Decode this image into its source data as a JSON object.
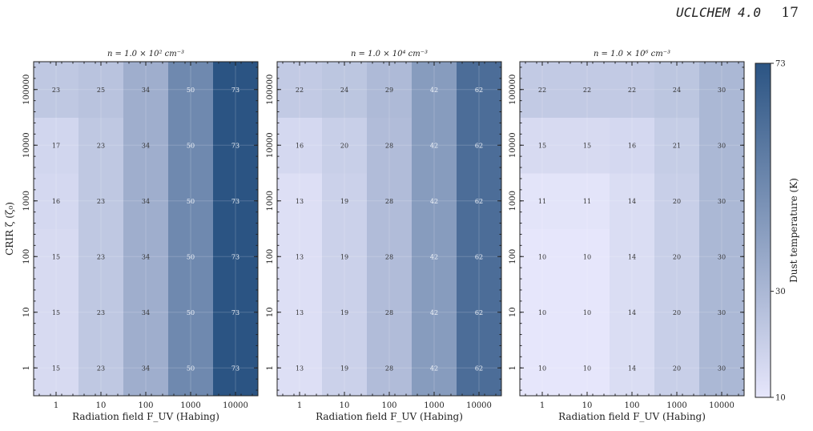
{
  "header": {
    "journal": "UCLCHEM 4.0",
    "page": "17"
  },
  "colorbar": {
    "label": "Dust temperature (K)",
    "ticks": [
      10,
      30,
      73
    ],
    "min": 10,
    "max": 73,
    "color_low": "#e6e6fb",
    "color_high": "#2b5483"
  },
  "chart_data": [
    {
      "type": "heatmap",
      "title": "n = 1.0 × 10² cm⁻³",
      "xlabel": "Radiation field F_UV (Habing)",
      "ylabel": "CRIR ζ (ζ₀)",
      "x": [
        "1",
        "10",
        "100",
        "1000",
        "10000"
      ],
      "y": [
        "1",
        "10",
        "100",
        "1000",
        "10000",
        "100000"
      ],
      "values": [
        [
          15,
          23,
          34,
          50,
          73
        ],
        [
          15,
          23,
          34,
          50,
          73
        ],
        [
          15,
          23,
          34,
          50,
          73
        ],
        [
          16,
          23,
          34,
          50,
          73
        ],
        [
          17,
          23,
          34,
          50,
          73
        ],
        [
          23,
          25,
          34,
          50,
          73
        ]
      ]
    },
    {
      "type": "heatmap",
      "title": "n = 1.0 × 10⁴ cm⁻³",
      "xlabel": "Radiation field F_UV (Habing)",
      "ylabel": "",
      "x": [
        "1",
        "10",
        "100",
        "1000",
        "10000"
      ],
      "y": [
        "1",
        "10",
        "100",
        "1000",
        "10000",
        "100000"
      ],
      "values": [
        [
          13,
          19,
          28,
          42,
          62
        ],
        [
          13,
          19,
          28,
          42,
          62
        ],
        [
          13,
          19,
          28,
          42,
          62
        ],
        [
          13,
          19,
          28,
          42,
          62
        ],
        [
          16,
          20,
          28,
          42,
          62
        ],
        [
          22,
          24,
          29,
          42,
          62
        ]
      ]
    },
    {
      "type": "heatmap",
      "title": "n = 1.0 × 10⁶ cm⁻³",
      "xlabel": "Radiation field F_UV (Habing)",
      "ylabel": "",
      "x": [
        "1",
        "10",
        "100",
        "1000",
        "10000"
      ],
      "y": [
        "1",
        "10",
        "100",
        "1000",
        "10000",
        "100000"
      ],
      "values": [
        [
          10,
          10,
          14,
          20,
          30
        ],
        [
          10,
          10,
          14,
          20,
          30
        ],
        [
          10,
          10,
          14,
          20,
          30
        ],
        [
          11,
          11,
          14,
          20,
          30
        ],
        [
          15,
          15,
          16,
          21,
          30
        ],
        [
          22,
          22,
          22,
          24,
          30
        ]
      ]
    }
  ]
}
